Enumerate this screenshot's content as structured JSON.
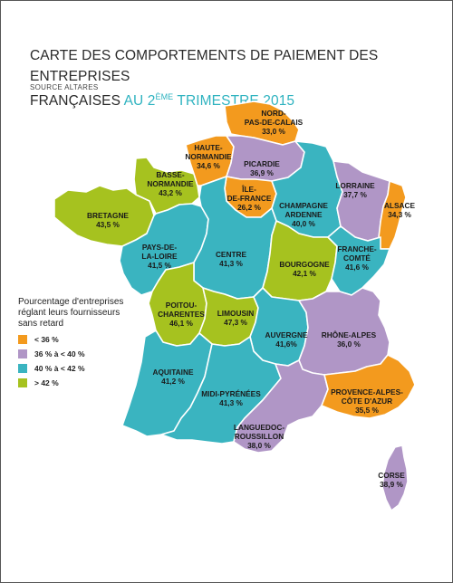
{
  "title": {
    "line1": "CARTE DES COMPORTEMENTS DE PAIEMENT DES ENTREPRISES",
    "line2_plain": "FRANÇAISES ",
    "line2_highlight_pre": "AU 2",
    "line2_highlight_sup": "ÈME",
    "line2_highlight_post": " TRIMESTRE 2015"
  },
  "source": "SOURCE ALTARES",
  "colors": {
    "orange": "#f39a1e",
    "purple": "#b096c6",
    "teal": "#3ab4c0",
    "green": "#a6c21f",
    "highlight": "#2fb3c0"
  },
  "legend": {
    "title": "Pourcentage d'entreprises réglant leurs fournisseurs sans retard",
    "items": [
      {
        "label": "< 36 %",
        "color": "#f39a1e"
      },
      {
        "label": "36 % à < 40 %",
        "color": "#b096c6"
      },
      {
        "label": "40 % à < 42 %",
        "color": "#3ab4c0"
      },
      {
        "label": "> 42 %",
        "color": "#a6c21f"
      }
    ]
  },
  "regions": [
    {
      "id": "nord",
      "name_lines": [
        "NORD-",
        "PAS-DE-CALAIS"
      ],
      "value": "33,0 %",
      "color": "#f39a1e"
    },
    {
      "id": "haute-normandie",
      "name_lines": [
        "HAUTE-",
        "NORMANDIE"
      ],
      "value": "34,6 %",
      "color": "#f39a1e"
    },
    {
      "id": "picardie",
      "name_lines": [
        "PICARDIE"
      ],
      "value": "36,9 %",
      "color": "#b096c6"
    },
    {
      "id": "basse-normandie",
      "name_lines": [
        "BASSE-",
        "NORMANDIE"
      ],
      "value": "43,2 %",
      "color": "#a6c21f"
    },
    {
      "id": "ile-de-france",
      "name_lines": [
        "ÎLE-",
        "DE-FRANCE"
      ],
      "value": "26,2 %",
      "color": "#f39a1e"
    },
    {
      "id": "champagne",
      "name_lines": [
        "CHAMPAGNE",
        "ARDENNE"
      ],
      "value": "40,0 %",
      "color": "#3ab4c0"
    },
    {
      "id": "lorraine",
      "name_lines": [
        "LORRAINE"
      ],
      "value": "37,7 %",
      "color": "#b096c6"
    },
    {
      "id": "alsace",
      "name_lines": [
        "ALSACE"
      ],
      "value": "34,3 %",
      "color": "#f39a1e"
    },
    {
      "id": "bretagne",
      "name_lines": [
        "BRETAGNE"
      ],
      "value": "43,5 %",
      "color": "#a6c21f"
    },
    {
      "id": "pays-de-la-loire",
      "name_lines": [
        "PAYS-DE-",
        "LA-LOIRE"
      ],
      "value": "41,5 %",
      "color": "#3ab4c0"
    },
    {
      "id": "centre",
      "name_lines": [
        "CENTRE"
      ],
      "value": "41,3 %",
      "color": "#3ab4c0"
    },
    {
      "id": "bourgogne",
      "name_lines": [
        "BOURGOGNE"
      ],
      "value": "42,1 %",
      "color": "#a6c21f"
    },
    {
      "id": "franche-comte",
      "name_lines": [
        "FRANCHE-",
        "COMTÉ"
      ],
      "value": "41,6 %",
      "color": "#3ab4c0"
    },
    {
      "id": "poitou",
      "name_lines": [
        "POITOU-",
        "CHARENTES"
      ],
      "value": "46,1 %",
      "color": "#a6c21f"
    },
    {
      "id": "limousin",
      "name_lines": [
        "LIMOUSIN"
      ],
      "value": "47,3 %",
      "color": "#a6c21f"
    },
    {
      "id": "auvergne",
      "name_lines": [
        "AUVERGNE"
      ],
      "value": "41,6%",
      "color": "#3ab4c0"
    },
    {
      "id": "rhone-alpes",
      "name_lines": [
        "RHÔNE-ALPES"
      ],
      "value": "36,0 %",
      "color": "#b096c6"
    },
    {
      "id": "aquitaine",
      "name_lines": [
        "AQUITAINE"
      ],
      "value": "41,2 %",
      "color": "#3ab4c0"
    },
    {
      "id": "midi-pyrenees",
      "name_lines": [
        "MIDI-PYRÉNÉES"
      ],
      "value": "41,3 %",
      "color": "#3ab4c0"
    },
    {
      "id": "languedoc",
      "name_lines": [
        "LANGUEDOC-",
        "ROUSSILLON"
      ],
      "value": "38,0 %",
      "color": "#b096c6"
    },
    {
      "id": "paca",
      "name_lines": [
        "PROVENCE-ALPES-",
        "CÔTE D'AZUR"
      ],
      "value": "35,5 %",
      "color": "#f39a1e"
    },
    {
      "id": "corse",
      "name_lines": [
        "CORSE"
      ],
      "value": "38,9 %",
      "color": "#b096c6"
    }
  ]
}
